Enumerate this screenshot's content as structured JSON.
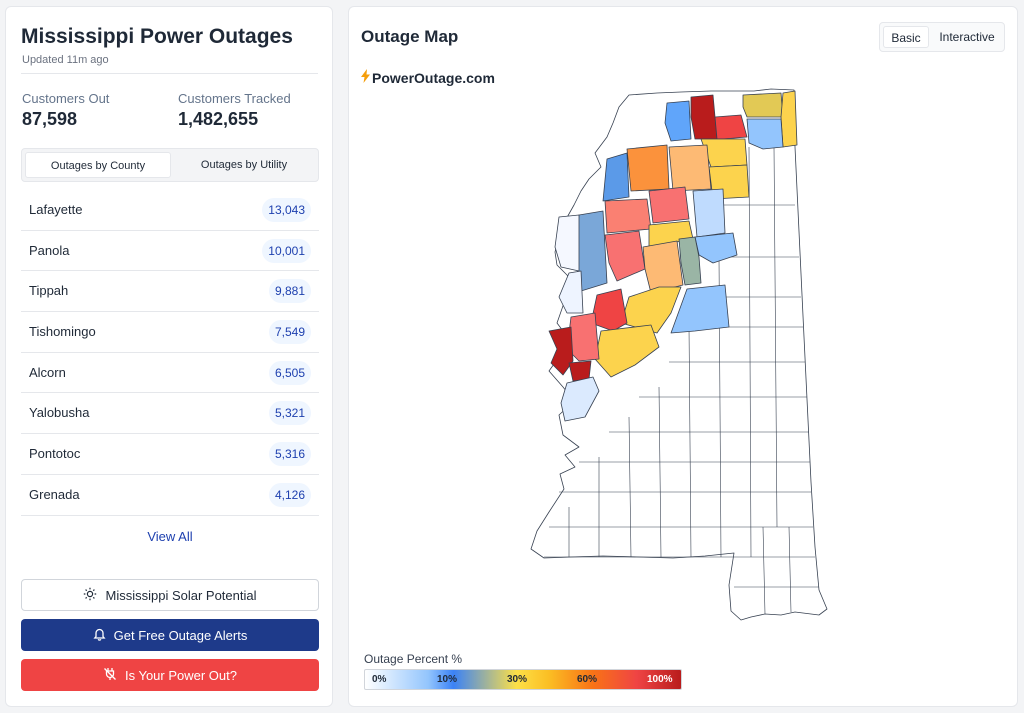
{
  "header": {
    "title": "Mississippi Power Outages",
    "updated": "Updated 11m ago"
  },
  "stats": {
    "customers_out_label": "Customers Out",
    "customers_out_value": "87,598",
    "customers_tracked_label": "Customers Tracked",
    "customers_tracked_value": "1,482,655"
  },
  "tabs": {
    "by_county": "Outages by County",
    "by_utility": "Outages by Utility"
  },
  "counties": [
    {
      "name": "Lafayette",
      "count": "13,043"
    },
    {
      "name": "Panola",
      "count": "10,001"
    },
    {
      "name": "Tippah",
      "count": "9,881"
    },
    {
      "name": "Tishomingo",
      "count": "7,549"
    },
    {
      "name": "Alcorn",
      "count": "6,505"
    },
    {
      "name": "Yalobusha",
      "count": "5,321"
    },
    {
      "name": "Pontotoc",
      "count": "5,316"
    },
    {
      "name": "Grenada",
      "count": "4,126"
    }
  ],
  "view_all": "View All",
  "buttons": {
    "solar": "Mississippi Solar Potential",
    "alerts": "Get Free Outage Alerts",
    "power_out": "Is Your Power Out?"
  },
  "map": {
    "title": "Outage Map",
    "view_basic": "Basic",
    "view_interactive": "Interactive",
    "brand": "PowerOutage.com",
    "legend_title": "Outage Percent %",
    "legend_ticks": [
      "0%",
      "10%",
      "30%",
      "60%",
      "100%"
    ]
  },
  "colors": {
    "navy": "#1e3a8a",
    "red": "#ef4444",
    "badge_bg": "#eff6ff",
    "badge_text": "#1e40af"
  },
  "icons": {
    "solar": "sun-icon",
    "alerts": "bell-icon",
    "power_out": "plug-off-icon",
    "brand": "lightning-bolt-icon"
  }
}
